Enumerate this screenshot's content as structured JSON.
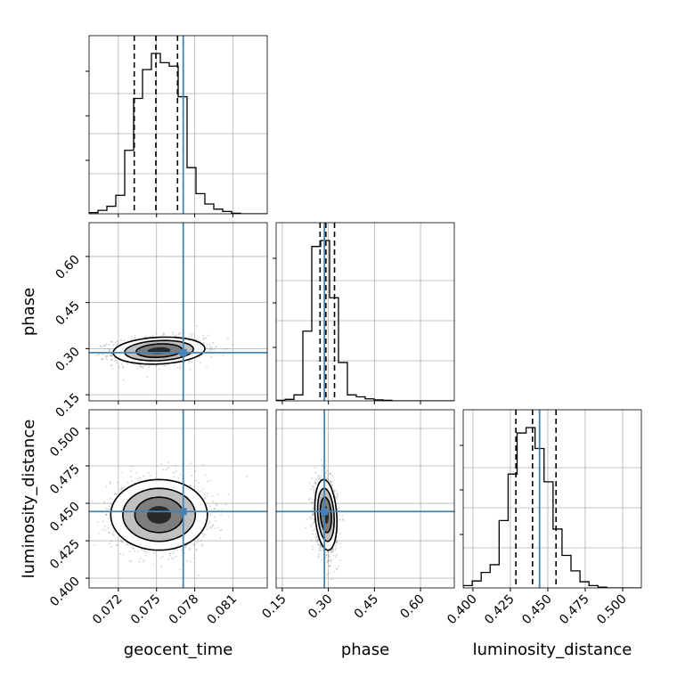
{
  "chart_data": {
    "type": "corner",
    "parameters": [
      "geocent_time",
      "phase",
      "luminosity_distance"
    ],
    "axis_labels": {
      "geocent_time": "geocent_time",
      "phase": "phase",
      "luminosity_distance": "luminosity_distance"
    },
    "ranges": {
      "geocent_time": [
        0.0697,
        0.0837
      ],
      "phase": [
        0.13,
        0.71
      ],
      "luminosity_distance": [
        0.3935,
        0.5125
      ]
    },
    "ticks": {
      "geocent_time": [
        "0.072",
        "0.075",
        "0.078",
        "0.081"
      ],
      "phase": [
        "0.15",
        "0.30",
        "0.45",
        "0.60"
      ],
      "luminosity_distance": [
        "0.400",
        "0.425",
        "0.450",
        "0.475",
        "0.500"
      ]
    },
    "truths": {
      "geocent_time": 0.0771,
      "phase": 0.287,
      "luminosity_distance": 0.4445
    },
    "quantiles": {
      "geocent_time": [
        0.07325,
        0.07495,
        0.07665
      ],
      "phase": [
        0.273,
        0.292,
        0.32
      ],
      "luminosity_distance": [
        0.4287,
        0.4398,
        0.4555
      ]
    },
    "histograms": {
      "geocent_time": {
        "edges": [
          0.0697,
          0.0704,
          0.0711,
          0.0718,
          0.0725,
          0.0732,
          0.0739,
          0.0746,
          0.0753,
          0.076,
          0.0767,
          0.0774,
          0.0781,
          0.0788,
          0.0795,
          0.0802,
          0.0809,
          0.0816,
          0.0823,
          0.083,
          0.0837
        ],
        "counts": [
          2,
          6,
          13,
          32,
          110,
          200,
          250,
          278,
          262,
          256,
          203,
          80,
          35,
          17,
          8,
          4,
          1,
          0,
          0,
          0
        ]
      },
      "phase": {
        "edges": [
          0.13,
          0.159,
          0.188,
          0.217,
          0.246,
          0.275,
          0.304,
          0.333,
          0.362,
          0.391,
          0.42,
          0.449,
          0.478,
          0.507,
          0.536,
          0.565,
          0.594,
          0.623,
          0.652,
          0.681,
          0.71
        ],
        "counts": [
          1,
          3,
          12,
          140,
          310,
          322,
          207,
          77,
          12,
          8,
          4,
          2,
          1,
          0,
          0,
          0,
          0,
          0,
          0,
          0
        ]
      },
      "luminosity_distance": {
        "edges": [
          0.3935,
          0.3995,
          0.4055,
          0.4115,
          0.4175,
          0.4235,
          0.4295,
          0.4355,
          0.4415,
          0.4475,
          0.4535,
          0.4595,
          0.4655,
          0.4715,
          0.4775,
          0.4835,
          0.4895,
          0.4955,
          0.5015,
          0.5075,
          0.5125
        ],
        "counts": [
          3,
          9,
          20,
          30,
          87,
          147,
          200,
          207,
          180,
          137,
          76,
          42,
          22,
          8,
          3,
          1,
          0,
          0,
          0,
          0
        ]
      }
    },
    "posterior_2d": {
      "phase_vs_geocent_time": {
        "mean": [
          0.0752,
          0.2935
        ],
        "sd": [
          0.0018,
          0.022
        ],
        "corr": 0.15
      },
      "luminosity_distance_vs_geocent_time": {
        "mean": [
          0.0752,
          0.4423
        ],
        "sd": [
          0.0019,
          0.0118
        ],
        "corr": 0.0
      },
      "luminosity_distance_vs_phase": {
        "mean": [
          0.292,
          0.4423
        ],
        "sd": [
          0.018,
          0.0118
        ],
        "corr": -0.2
      }
    },
    "contour_levels_sigma": [
      0.5,
      1.0,
      1.5,
      2.0
    ],
    "grid": true,
    "colors": {
      "truth": "#4682b4",
      "hist": "#000000",
      "points": "#808080"
    }
  }
}
